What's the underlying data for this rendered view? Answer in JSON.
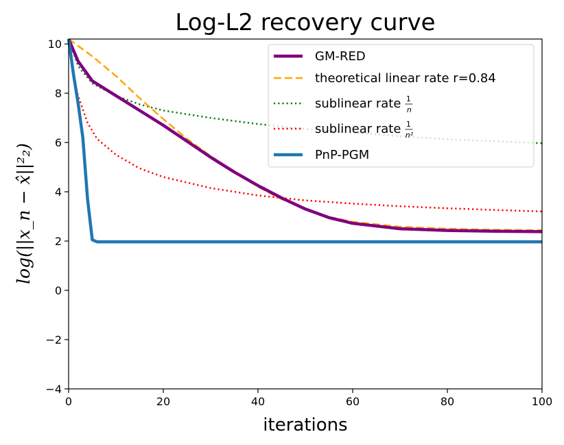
{
  "chart_data": {
    "type": "line",
    "title": "Log-L2 recovery curve",
    "xlabel": "iterations",
    "ylabel": "log(||x_n − x̂||²₂)",
    "xlim": [
      0,
      100
    ],
    "ylim": [
      -4,
      10.2
    ],
    "x_ticks": [
      "0",
      "20",
      "40",
      "60",
      "80",
      "100"
    ],
    "y_ticks": [
      "10",
      "8",
      "6",
      "4",
      "2",
      "0",
      "−2",
      "−4"
    ],
    "grid": false,
    "legend_position": "top-right",
    "series": [
      {
        "name": "GM-RED",
        "color": "#800080",
        "style": "solid",
        "x": [
          0,
          2,
          5,
          10,
          15,
          20,
          25,
          30,
          35,
          40,
          45,
          50,
          55,
          60,
          70,
          80,
          90,
          100
        ],
        "y": [
          10.2,
          9.3,
          8.5,
          7.9,
          7.3,
          6.7,
          6.05,
          5.4,
          4.8,
          4.25,
          3.75,
          3.3,
          2.95,
          2.72,
          2.5,
          2.43,
          2.4,
          2.38
        ]
      },
      {
        "name": "theoretical linear rate r=0.84",
        "color": "#ffa500",
        "style": "dashed",
        "x": [
          0,
          5,
          10,
          15,
          20,
          25,
          30,
          35,
          40,
          45,
          50,
          55,
          60,
          70,
          80,
          90,
          100
        ],
        "y": [
          10.2,
          9.5,
          8.7,
          7.8,
          6.95,
          6.15,
          5.45,
          4.8,
          4.2,
          3.7,
          3.3,
          2.98,
          2.78,
          2.58,
          2.5,
          2.46,
          2.44
        ]
      },
      {
        "name": "sublinear rate",
        "label_fraction": {
          "numerator": "1",
          "denominator": "n"
        },
        "color": "#008000",
        "style": "dotted",
        "x": [
          0,
          2,
          5,
          10,
          15,
          20,
          30,
          40,
          50,
          60,
          70,
          80,
          90,
          100
        ],
        "y": [
          10.2,
          9.1,
          8.4,
          7.9,
          7.55,
          7.3,
          7.0,
          6.75,
          6.55,
          6.4,
          6.25,
          6.13,
          6.05,
          5.97
        ]
      },
      {
        "name": "sublinear rate",
        "label_fraction": {
          "numerator": "1",
          "denominator": "n²"
        },
        "color": "#ff0000",
        "style": "dotted",
        "x": [
          0,
          1,
          2,
          4,
          6,
          10,
          15,
          20,
          30,
          40,
          50,
          60,
          70,
          80,
          90,
          100
        ],
        "y": [
          10.2,
          8.8,
          7.9,
          6.8,
          6.15,
          5.5,
          4.95,
          4.6,
          4.15,
          3.85,
          3.65,
          3.52,
          3.41,
          3.33,
          3.26,
          3.2
        ]
      },
      {
        "name": "PnP-PGM",
        "color": "#1f77b4",
        "style": "solid",
        "x": [
          0,
          1,
          2,
          3,
          4,
          5,
          6,
          10,
          20,
          40,
          60,
          80,
          100
        ],
        "y": [
          10.2,
          8.8,
          7.6,
          6.2,
          3.7,
          2.05,
          1.97,
          1.97,
          1.97,
          1.97,
          1.97,
          1.97,
          1.97
        ]
      }
    ]
  }
}
